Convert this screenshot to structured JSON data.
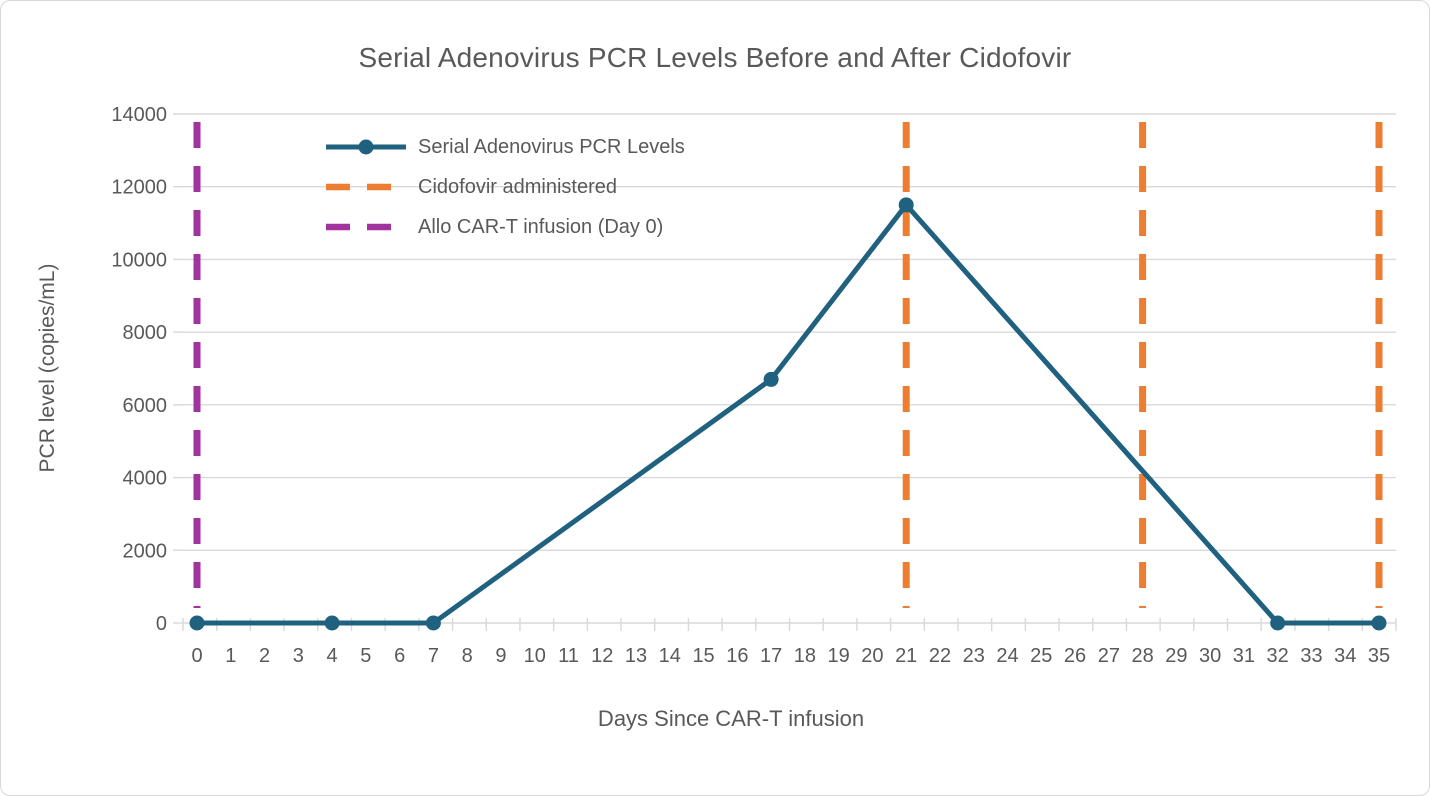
{
  "chart": {
    "title": "Serial Adenovirus PCR Levels Before and After Cidofovir",
    "xlabel": "Days Since CAR-T infusion",
    "ylabel": "PCR level (copies/mL)"
  },
  "chart_data": {
    "type": "line",
    "title": "Serial Adenovirus PCR Levels Before and After Cidofovir",
    "xlabel": "Days Since CAR-T infusion",
    "ylabel": "PCR level (copies/mL)",
    "xlim": [
      0,
      35
    ],
    "ylim": [
      0,
      14000
    ],
    "x_ticks": [
      0,
      1,
      2,
      3,
      4,
      5,
      6,
      7,
      8,
      9,
      10,
      11,
      12,
      13,
      14,
      15,
      16,
      17,
      18,
      19,
      20,
      21,
      22,
      23,
      24,
      25,
      26,
      27,
      28,
      29,
      30,
      31,
      32,
      33,
      34,
      35
    ],
    "y_ticks": [
      0,
      2000,
      4000,
      6000,
      8000,
      10000,
      12000,
      14000
    ],
    "grid": true,
    "legend_position": "upper-left-inside",
    "series": [
      {
        "name": "Serial Adenovirus PCR Levels",
        "color": "#1f617f",
        "marker": "circle",
        "points": [
          [
            0,
            0
          ],
          [
            4,
            0
          ],
          [
            7,
            0
          ],
          [
            17,
            6700
          ],
          [
            21,
            11500
          ],
          [
            32,
            0
          ],
          [
            35,
            0
          ]
        ]
      }
    ],
    "vlines": [
      {
        "name": "Allo CAR-T infusion (Day 0)",
        "color": "#a2339e",
        "style": "dashed",
        "x": [
          0
        ]
      },
      {
        "name": "Cidofovir administered",
        "color": "#ed7d31",
        "style": "dashed",
        "x": [
          21,
          28,
          35
        ]
      }
    ],
    "legend": [
      {
        "label": "Serial Adenovirus PCR Levels",
        "color": "#1f617f",
        "style": "solid-marker"
      },
      {
        "label": "Cidofovir administered",
        "color": "#ed7d31",
        "style": "dashed"
      },
      {
        "label": "Allo CAR-T infusion (Day 0)",
        "color": "#a2339e",
        "style": "dashed"
      }
    ],
    "colors": {
      "grid": "#d9d9d9",
      "tick": "#d9d9d9",
      "text": "#595959",
      "background": "#ffffff"
    }
  }
}
